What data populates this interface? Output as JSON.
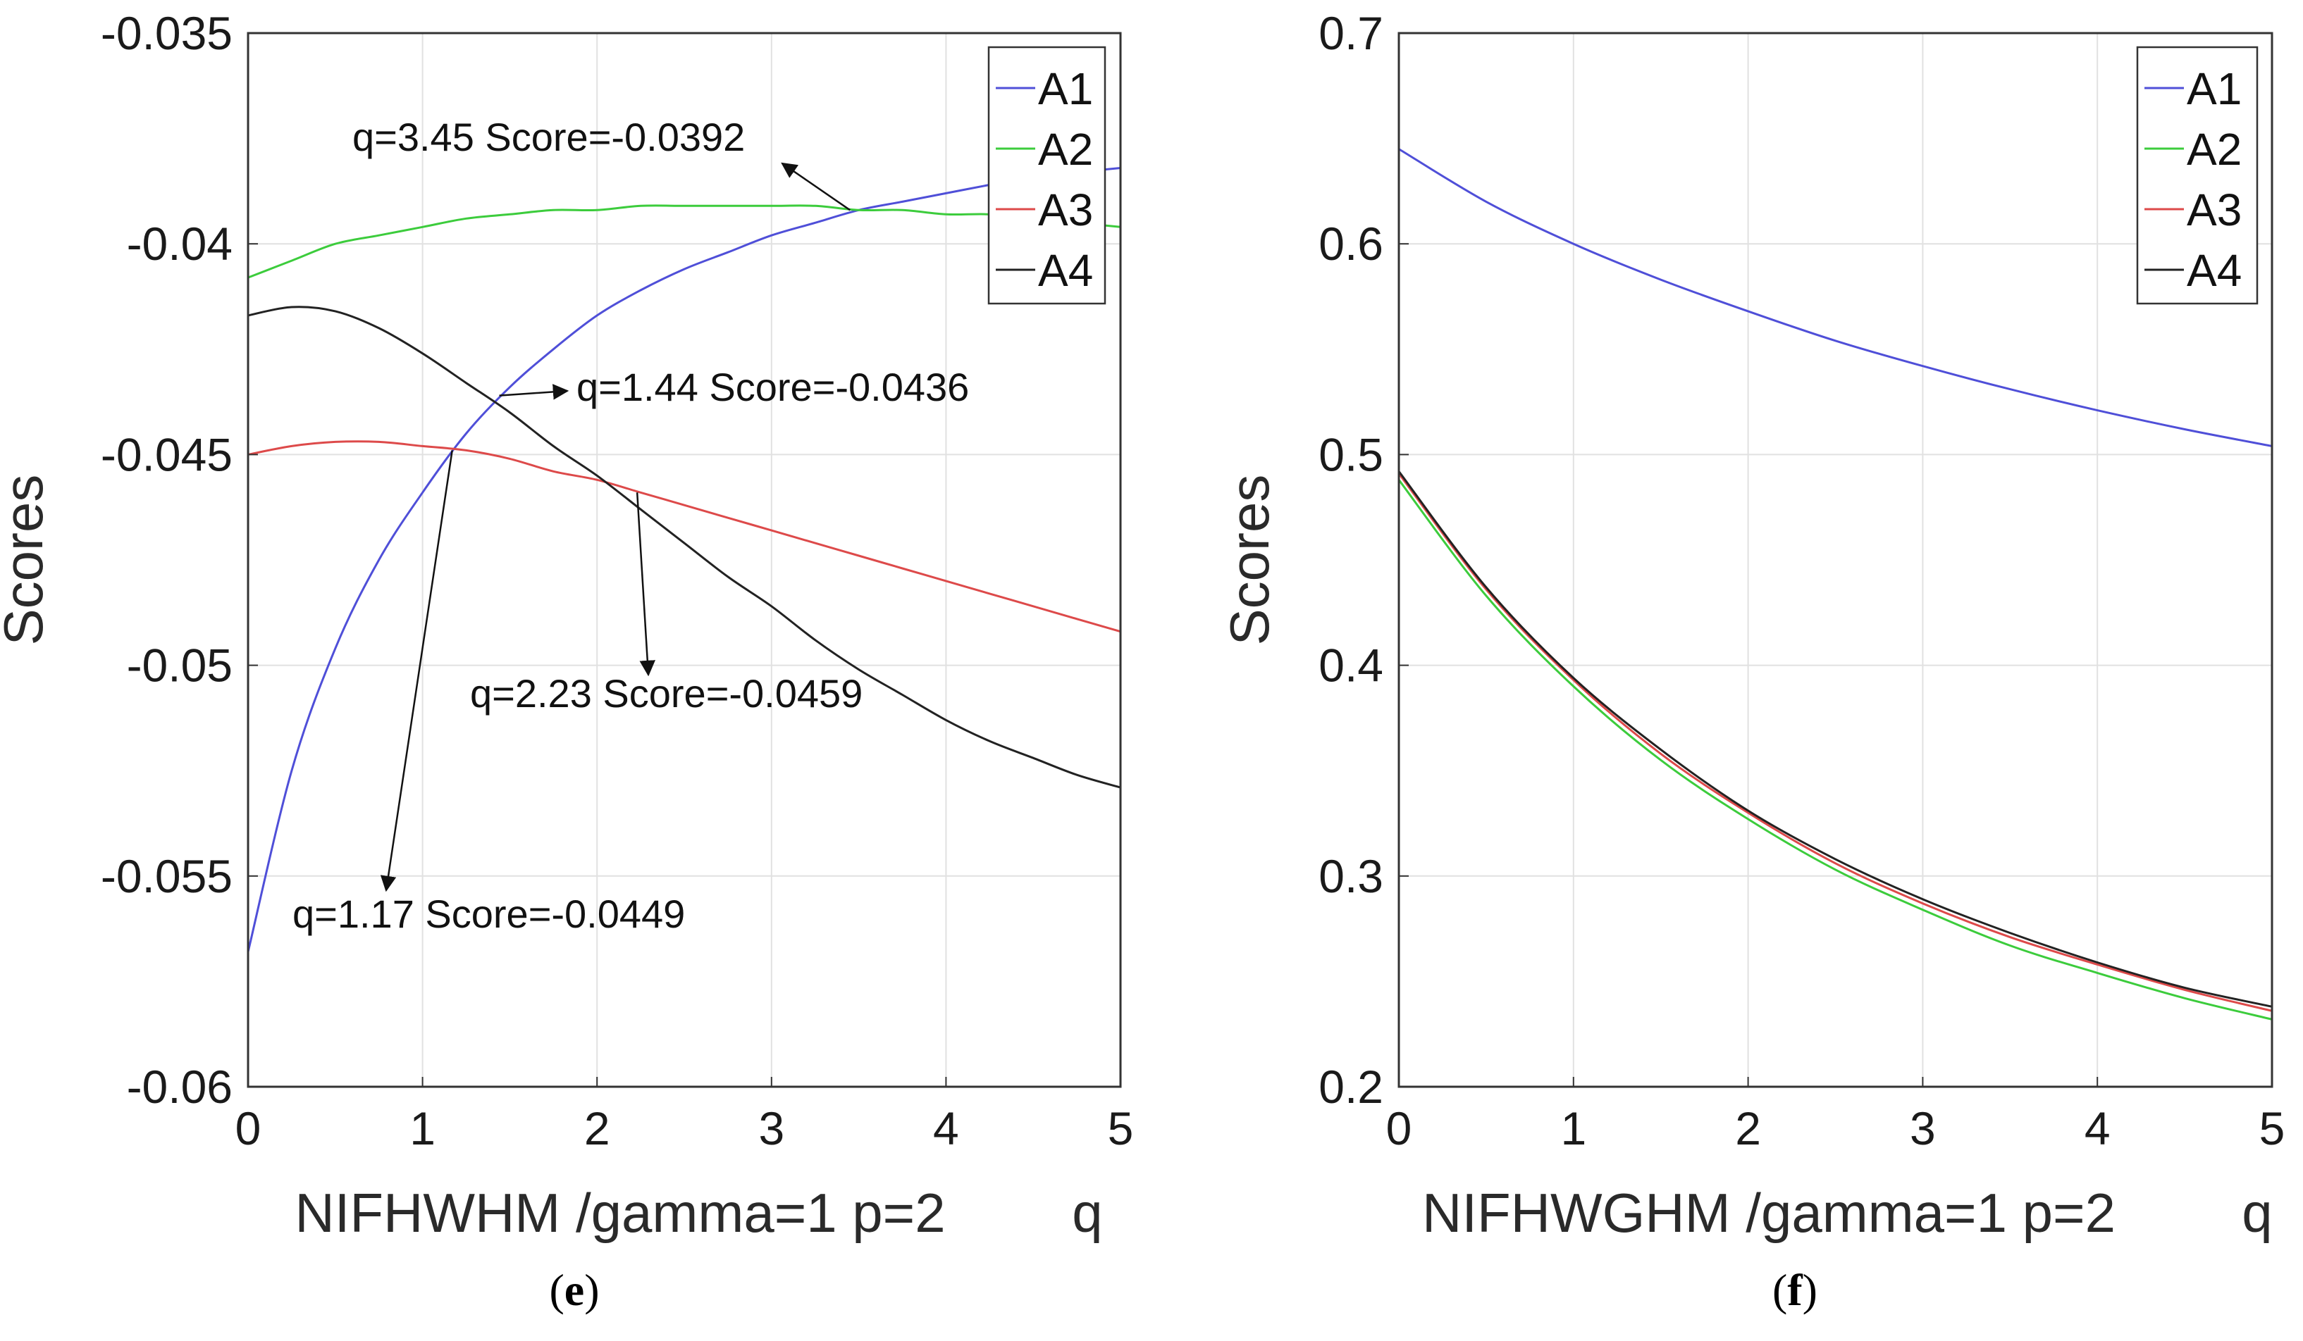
{
  "chart_data": [
    {
      "type": "line",
      "panel": "(e)",
      "panel_open": "(",
      "panel_letter": "e",
      "panel_close": ")",
      "xlabel": "NIFHWHM /gamma=1 p=2",
      "xlabel_var": "q",
      "ylabel": "Scores",
      "xlim": [
        0,
        5
      ],
      "ylim": [
        -0.06,
        -0.035
      ],
      "xticks": [
        0,
        1,
        2,
        3,
        4,
        5
      ],
      "yticks": [
        -0.06,
        -0.055,
        -0.05,
        -0.045,
        -0.04,
        -0.035
      ],
      "ytick_labels": [
        "-0.06",
        "-0.055",
        "-0.05",
        "-0.045",
        "-0.04",
        "-0.035"
      ],
      "grid": true,
      "legend": "top-right",
      "x": [
        0,
        0.25,
        0.5,
        0.75,
        1,
        1.25,
        1.5,
        1.75,
        2,
        2.25,
        2.5,
        2.75,
        3,
        3.25,
        3.5,
        3.75,
        4,
        4.25,
        4.5,
        4.75,
        5
      ],
      "series": [
        {
          "name": "A1",
          "color": "#4f4fd8",
          "values": [
            -0.0568,
            -0.0525,
            -0.0496,
            -0.0475,
            -0.0459,
            -0.0445,
            -0.0434,
            -0.0425,
            -0.0417,
            -0.0411,
            -0.0406,
            -0.0402,
            -0.0398,
            -0.0395,
            -0.0392,
            -0.039,
            -0.0388,
            -0.0386,
            -0.0384,
            -0.0383,
            -0.0382
          ]
        },
        {
          "name": "A2",
          "color": "#3ccc3c",
          "values": [
            -0.0408,
            -0.0404,
            -0.04,
            -0.0398,
            -0.0396,
            -0.0394,
            -0.0393,
            -0.0392,
            -0.0392,
            -0.0391,
            -0.0391,
            -0.0391,
            -0.0391,
            -0.0391,
            -0.0392,
            -0.0392,
            -0.0393,
            -0.0393,
            -0.0394,
            -0.0395,
            -0.0396
          ]
        },
        {
          "name": "A3",
          "color": "#dd4a4a",
          "values": [
            -0.045,
            -0.0448,
            -0.0447,
            -0.0447,
            -0.0448,
            -0.0449,
            -0.0451,
            -0.0454,
            -0.0456,
            -0.0459,
            -0.0462,
            -0.0465,
            -0.0468,
            -0.0471,
            -0.0474,
            -0.0477,
            -0.048,
            -0.0483,
            -0.0486,
            -0.0489,
            -0.0492
          ]
        },
        {
          "name": "A4",
          "color": "#222222",
          "values": [
            -0.0417,
            -0.0415,
            -0.0416,
            -0.042,
            -0.0426,
            -0.0433,
            -0.044,
            -0.0448,
            -0.0455,
            -0.0463,
            -0.0471,
            -0.0479,
            -0.0486,
            -0.0494,
            -0.0501,
            -0.0507,
            -0.0513,
            -0.0518,
            -0.0522,
            -0.0526,
            -0.0529
          ]
        }
      ],
      "annotations": [
        {
          "text": "q=3.45 Score=-0.0392",
          "x": 3.45,
          "y": -0.0392
        },
        {
          "text": "q=1.44 Score=-0.0436",
          "x": 1.44,
          "y": -0.0436
        },
        {
          "text": "q=2.23 Score=-0.0459",
          "x": 2.23,
          "y": -0.0459
        },
        {
          "text": "q=1.17 Score=-0.0449",
          "x": 1.17,
          "y": -0.0449
        }
      ]
    },
    {
      "type": "line",
      "panel": "(f)",
      "panel_open": "(",
      "panel_letter": "f",
      "panel_close": ")",
      "xlabel": "NIFHWGHM /gamma=1 p=2",
      "xlabel_var": "q",
      "ylabel": "Scores",
      "xlim": [
        0,
        5
      ],
      "ylim": [
        0.2,
        0.7
      ],
      "xticks": [
        0,
        1,
        2,
        3,
        4,
        5
      ],
      "yticks": [
        0.2,
        0.3,
        0.4,
        0.5,
        0.6,
        0.7
      ],
      "ytick_labels": [
        "0.2",
        "0.3",
        "0.4",
        "0.5",
        "0.6",
        "0.7"
      ],
      "grid": true,
      "legend": "top-right",
      "x": [
        0,
        0.5,
        1,
        1.5,
        2,
        2.5,
        3,
        3.5,
        4,
        4.5,
        5
      ],
      "series": [
        {
          "name": "A1",
          "color": "#4f4fd8",
          "values": [
            0.645,
            0.62,
            0.6,
            0.583,
            0.568,
            0.554,
            0.542,
            0.531,
            0.521,
            0.512,
            0.504
          ]
        },
        {
          "name": "A2",
          "color": "#3ccc3c",
          "values": [
            0.488,
            0.433,
            0.39,
            0.355,
            0.327,
            0.303,
            0.284,
            0.267,
            0.254,
            0.242,
            0.232
          ]
        },
        {
          "name": "A3",
          "color": "#dd4a4a",
          "values": [
            0.491,
            0.436,
            0.393,
            0.358,
            0.33,
            0.306,
            0.287,
            0.271,
            0.258,
            0.246,
            0.236
          ]
        },
        {
          "name": "A4",
          "color": "#222222",
          "values": [
            0.492,
            0.437,
            0.394,
            0.36,
            0.331,
            0.308,
            0.289,
            0.273,
            0.259,
            0.247,
            0.238
          ]
        }
      ]
    }
  ]
}
